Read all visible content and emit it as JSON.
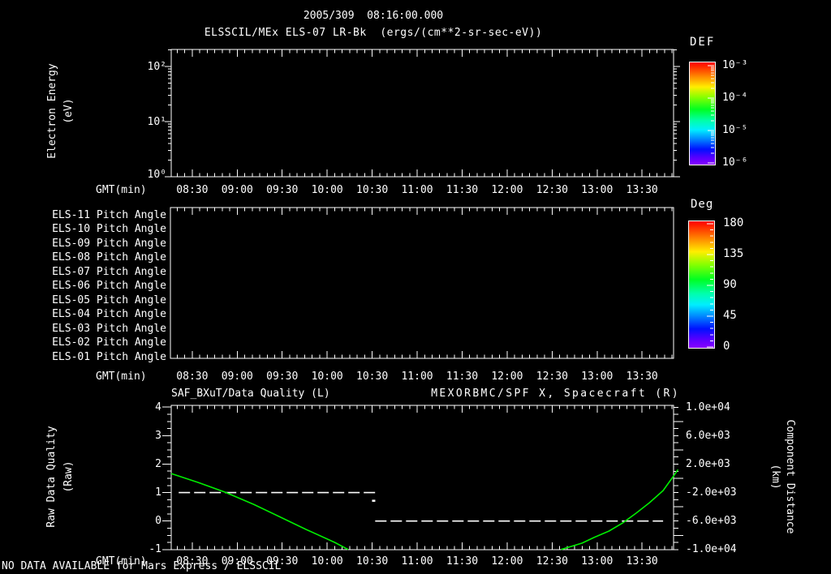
{
  "header": {
    "title": "2005/309  08:16:00.000",
    "subtitle": "ELSSCIL/MEx ELS-07 LR-Bk  (ergs/(cm**2-sr-sec-eV))"
  },
  "status": {
    "no_data_message": "NO DATA AVAILABLE for Mars Express / ELSSCIL"
  },
  "colors": {
    "background": "#000000",
    "foreground": "#ffffff",
    "accent_green": "#00ee00"
  },
  "chart_data": [
    {
      "id": "electron-energy-spectrogram",
      "type": "heatmap",
      "ylabel": "Electron Energy (eV)",
      "ylabel_lines": [
        "Electron Energy",
        "(eV)"
      ],
      "xlabel": "GMT(min)",
      "x_tick_labels": [
        "08:30",
        "09:00",
        "09:30",
        "10:00",
        "10:30",
        "11:00",
        "11:30",
        "12:00",
        "12:30",
        "13:00",
        "13:30"
      ],
      "x_tick_minutes": [
        510,
        540,
        570,
        600,
        630,
        660,
        690,
        720,
        750,
        780,
        810
      ],
      "x_range_minutes": [
        496,
        831
      ],
      "y_scale": "log",
      "y_tick_labels": [
        "10²",
        "10¹",
        "10⁰"
      ],
      "ylim_ev": [
        1,
        200
      ],
      "values": [],
      "colorbar": {
        "title": "DEF",
        "scale": "log",
        "tick_labels": [
          "10⁻³",
          "10⁻⁴",
          "10⁻⁵",
          "10⁻⁶"
        ]
      }
    },
    {
      "id": "pitch-angle-rows",
      "type": "heatmap",
      "row_labels": [
        "ELS-11 Pitch Angle",
        "ELS-10 Pitch Angle",
        "ELS-09 Pitch Angle",
        "ELS-08 Pitch Angle",
        "ELS-07 Pitch Angle",
        "ELS-06 Pitch Angle",
        "ELS-05 Pitch Angle",
        "ELS-04 Pitch Angle",
        "ELS-03 Pitch Angle",
        "ELS-02 Pitch Angle",
        "ELS-01 Pitch Angle"
      ],
      "xlabel": "GMT(min)",
      "x_tick_labels": [
        "08:30",
        "09:00",
        "09:30",
        "10:00",
        "10:30",
        "11:00",
        "11:30",
        "12:00",
        "12:30",
        "13:00",
        "13:30"
      ],
      "values": [],
      "colorbar": {
        "title": "Deg",
        "scale": "linear",
        "tick_labels": [
          "180",
          "135",
          "90",
          "45",
          "0"
        ],
        "tick_values": [
          180,
          135,
          90,
          45,
          0
        ]
      }
    },
    {
      "id": "quality-and-distance",
      "type": "line",
      "titles": {
        "left": "SAF_BXuT/Data Quality (L)",
        "right": "MEXORBMC/SPF X, Spacecraft (R)"
      },
      "xlabel": "GMT(min)",
      "x_tick_labels": [
        "08:30",
        "09:00",
        "09:30",
        "10:00",
        "10:30",
        "11:00",
        "11:30",
        "12:00",
        "12:30",
        "13:00",
        "13:30"
      ],
      "left_axis": {
        "label": "Raw Data Quality (Raw)",
        "label_lines": [
          "Raw Data Quality",
          "(Raw)"
        ],
        "tick_labels": [
          "4",
          "3",
          "2",
          "1",
          "0",
          "-1"
        ],
        "tick_values": [
          4,
          3,
          2,
          1,
          0,
          -1
        ],
        "lim": [
          -1.02,
          4.06
        ]
      },
      "right_axis": {
        "label": "Component Distance (km)",
        "label_lines": [
          "Component Distance",
          "(km)"
        ],
        "tick_labels": [
          "1.0e+04",
          "6.0e+03",
          "2.0e+03",
          "-2.0e+03",
          "-6.0e+03",
          "-1.0e+04"
        ],
        "tick_values": [
          10000,
          6000,
          2000,
          -2000,
          -6000,
          -10000
        ],
        "lim": [
          -10100,
          10100
        ]
      },
      "series": [
        {
          "name": "SAF_BXuT/Data Quality (L)",
          "axis": "left",
          "color": "#ffffff",
          "line_style": "dashed",
          "segments_time_value": [
            [
              [
                501,
                1
              ],
              [
                632,
                1
              ]
            ],
            [
              [
                632,
                0
              ],
              [
                824,
                0
              ]
            ]
          ],
          "step_dot_time_value": [
            631,
            0.72
          ]
        },
        {
          "name": "MEXORBMC/SPF X, Spacecraft (R)",
          "axis": "right",
          "color": "#00ee00",
          "line_style": "solid",
          "segments_time_value": [
            [
              [
                496,
                670
              ],
              [
                514,
                -580
              ],
              [
                532,
                -1950
              ],
              [
                551,
                -3650
              ],
              [
                568,
                -5360
              ],
              [
                586,
                -7180
              ],
              [
                605,
                -9000
              ],
              [
                614,
                -10000
              ]
            ],
            [
              [
                756,
                -10000
              ],
              [
                770,
                -9100
              ],
              [
                778,
                -8300
              ],
              [
                788,
                -7400
              ],
              [
                797,
                -6270
              ],
              [
                806,
                -4900
              ],
              [
                815,
                -3420
              ],
              [
                824,
                -1720
              ],
              [
                831,
                330
              ],
              [
                834,
                1230
              ]
            ]
          ]
        }
      ]
    }
  ]
}
